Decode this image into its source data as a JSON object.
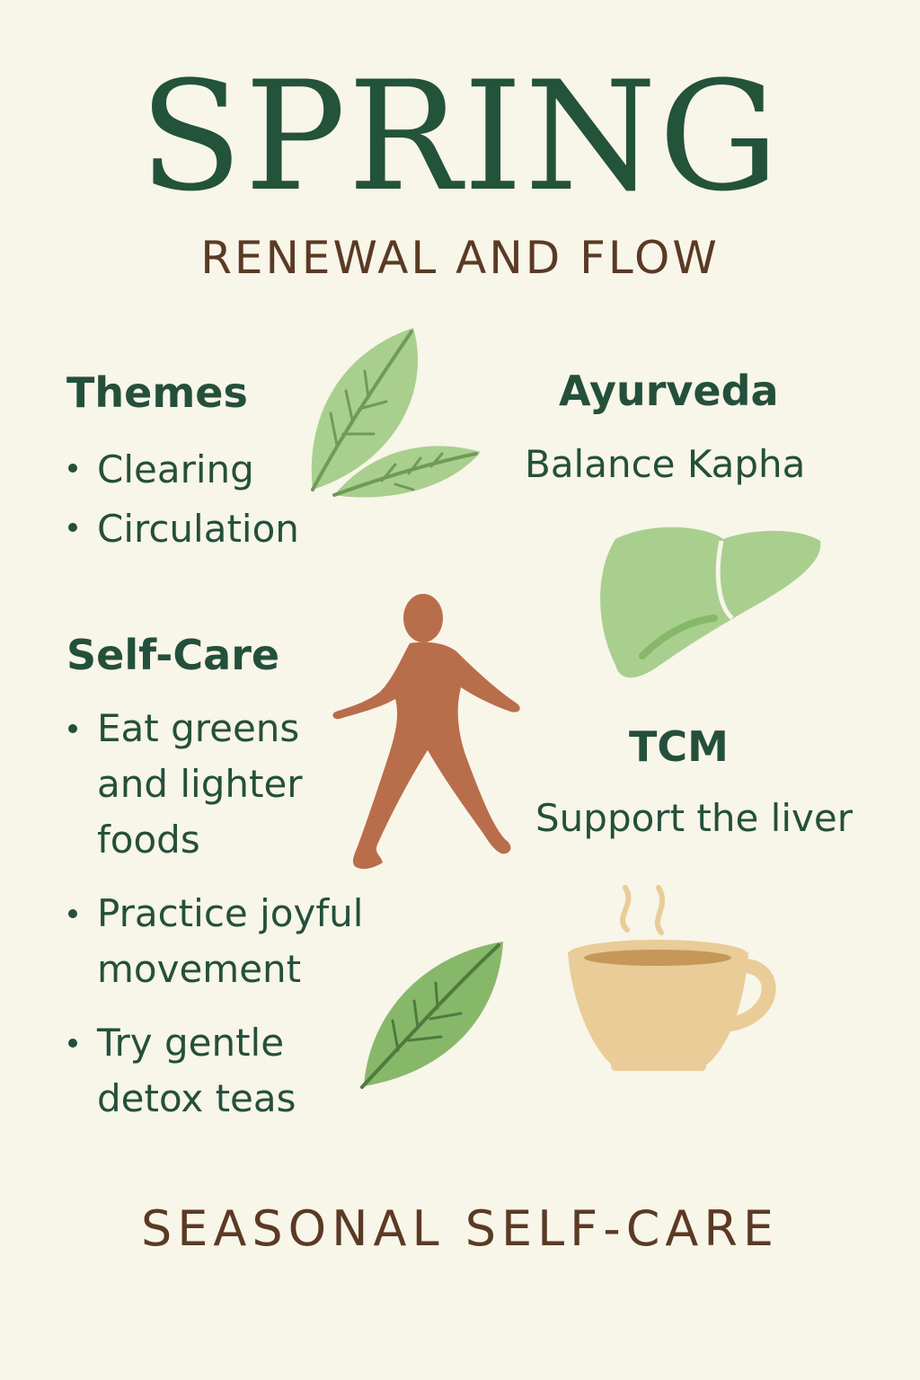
{
  "title": "SPRING",
  "subtitle": "RENEWAL AND FLOW",
  "themes": {
    "heading": "Themes",
    "items": [
      "Clearing",
      "Circulation"
    ]
  },
  "ayurveda": {
    "heading": "Ayurveda",
    "text": "Balance Kapha"
  },
  "self_care": {
    "heading": "Self-Care",
    "items": [
      {
        "line1": "Eat greens",
        "line2": "and lighter",
        "line3": "foods"
      },
      {
        "line1": "Practice joyful",
        "line2": "movement"
      },
      {
        "line1": "Try gentle",
        "line2": "detox teas"
      }
    ]
  },
  "tcm": {
    "heading": "TCM",
    "text": "Support the liver"
  },
  "footer": "SEASONAL SELF-CARE",
  "colors": {
    "background": "#f8f5e9",
    "heading_green": "#23533a",
    "accent_brown": "#5b3a24",
    "leaf_light": "#a9cf8e",
    "leaf_medium": "#87b86a",
    "figure": "#b86e4b",
    "tea_cup": "#e9cc97"
  },
  "icons": [
    "leaf-icon",
    "liver-icon",
    "walking-person-icon",
    "tea-cup-icon"
  ]
}
